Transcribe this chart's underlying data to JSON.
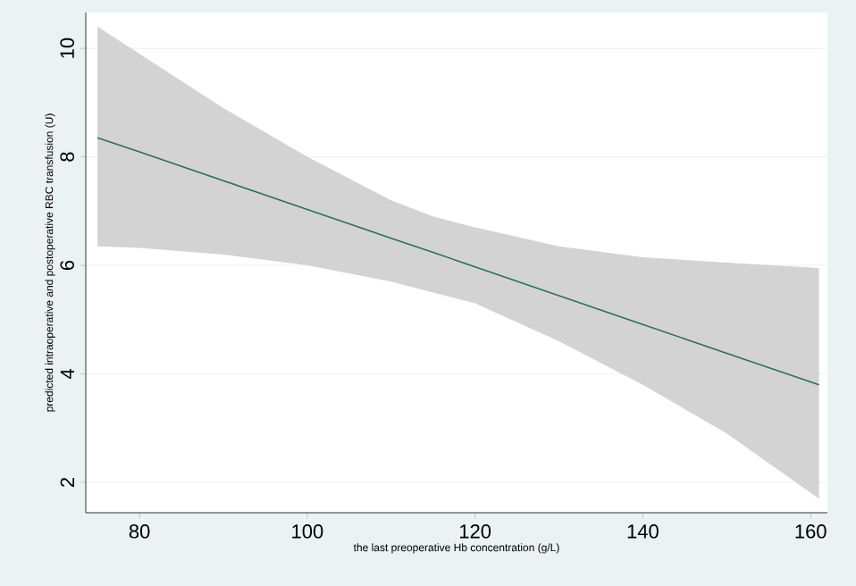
{
  "chart_data": {
    "type": "line",
    "xlabel": "the last preoperative Hb concentration (g/L)",
    "ylabel": "predicted intraoperative and postoperative RBC transfusion (U)",
    "x": [
      75,
      80,
      90,
      100,
      110,
      115,
      120,
      130,
      140,
      150,
      161
    ],
    "series": [
      {
        "color": "#2e6e5e",
        "values": [
          8.35,
          8.09,
          7.56,
          7.03,
          6.5,
          6.24,
          5.97,
          5.44,
          4.91,
          4.38,
          3.8
        ],
        "lower": [
          6.35,
          6.32,
          6.2,
          6.0,
          5.7,
          5.5,
          5.3,
          4.6,
          3.8,
          2.9,
          1.7
        ],
        "upper": [
          10.4,
          9.9,
          8.9,
          8.0,
          7.2,
          6.9,
          6.7,
          6.35,
          6.15,
          6.05,
          5.95
        ]
      }
    ],
    "xlim": [
      73.6,
      162
    ],
    "ylim": [
      1.44,
      10.66
    ],
    "xticks": [
      80,
      100,
      120,
      140,
      160
    ],
    "yticks": [
      2,
      4,
      6,
      8,
      10
    ],
    "grid": "y"
  }
}
